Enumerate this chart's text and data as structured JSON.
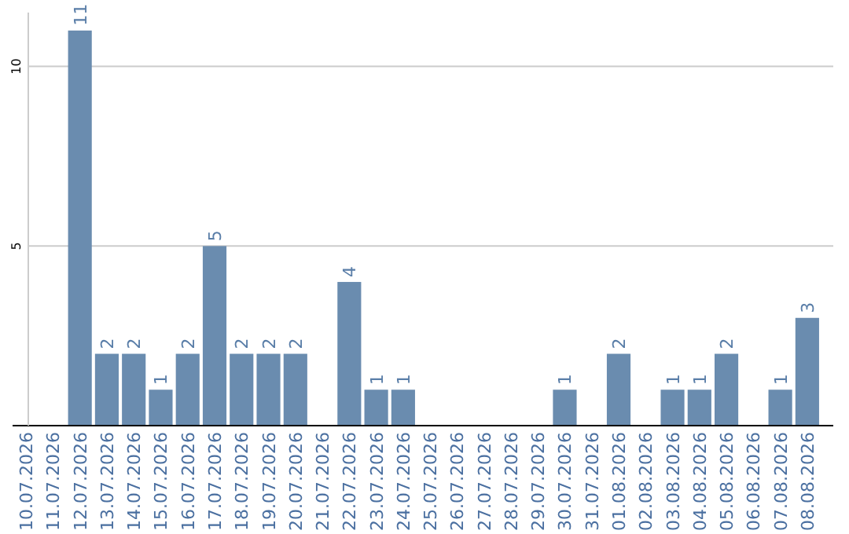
{
  "chart_data": {
    "type": "bar",
    "categories": [
      "10.07.2026",
      "11.07.2026",
      "12.07.2026",
      "13.07.2026",
      "14.07.2026",
      "15.07.2026",
      "16.07.2026",
      "17.07.2026",
      "18.07.2026",
      "19.07.2026",
      "20.07.2026",
      "21.07.2026",
      "22.07.2026",
      "23.07.2026",
      "24.07.2026",
      "25.07.2026",
      "26.07.2026",
      "27.07.2026",
      "28.07.2026",
      "29.07.2026",
      "30.07.2026",
      "31.07.2026",
      "01.08.2026",
      "02.08.2026",
      "03.08.2026",
      "04.08.2026",
      "05.08.2026",
      "06.08.2026",
      "07.08.2026",
      "08.08.2026"
    ],
    "values": [
      null,
      null,
      11,
      2,
      2,
      1,
      2,
      5,
      2,
      2,
      2,
      null,
      4,
      1,
      1,
      null,
      null,
      null,
      null,
      null,
      1,
      null,
      2,
      null,
      1,
      1,
      2,
      null,
      1,
      3
    ],
    "color": "#6a8caf",
    "ylim": [
      0,
      11.5
    ],
    "yticks": [
      5,
      10
    ],
    "grid": "y",
    "data_labels": true
  }
}
